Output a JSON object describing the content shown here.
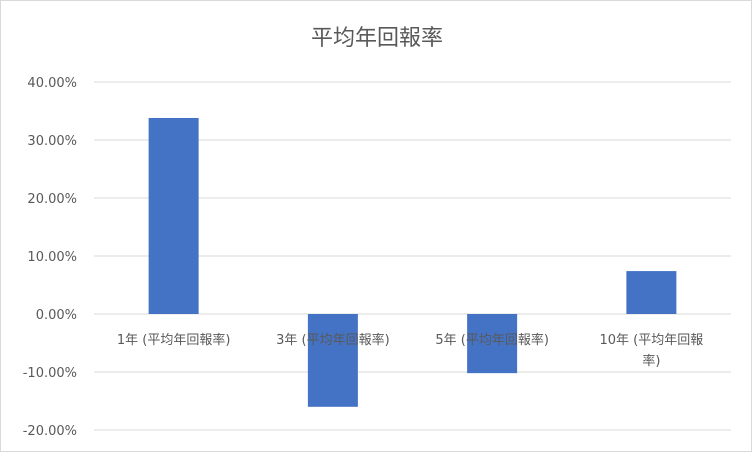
{
  "chart_data": {
    "type": "bar",
    "title": "平均年回報率",
    "categories": [
      "1年 (平均年回報率)",
      "3年 (平均年回報率)",
      "5年 (平均年回報率)",
      "10年 (平均年回報率)"
    ],
    "values": [
      0.338,
      -0.16,
      -0.102,
      0.074
    ],
    "ylim": [
      -0.2,
      0.4
    ],
    "yticks": [
      "40.00%",
      "30.00%",
      "20.00%",
      "10.00%",
      "0.00%",
      "-10.00%",
      "-20.00%"
    ],
    "grid": true,
    "bar_color": "#4472C4",
    "xlabel": "",
    "ylabel": ""
  }
}
